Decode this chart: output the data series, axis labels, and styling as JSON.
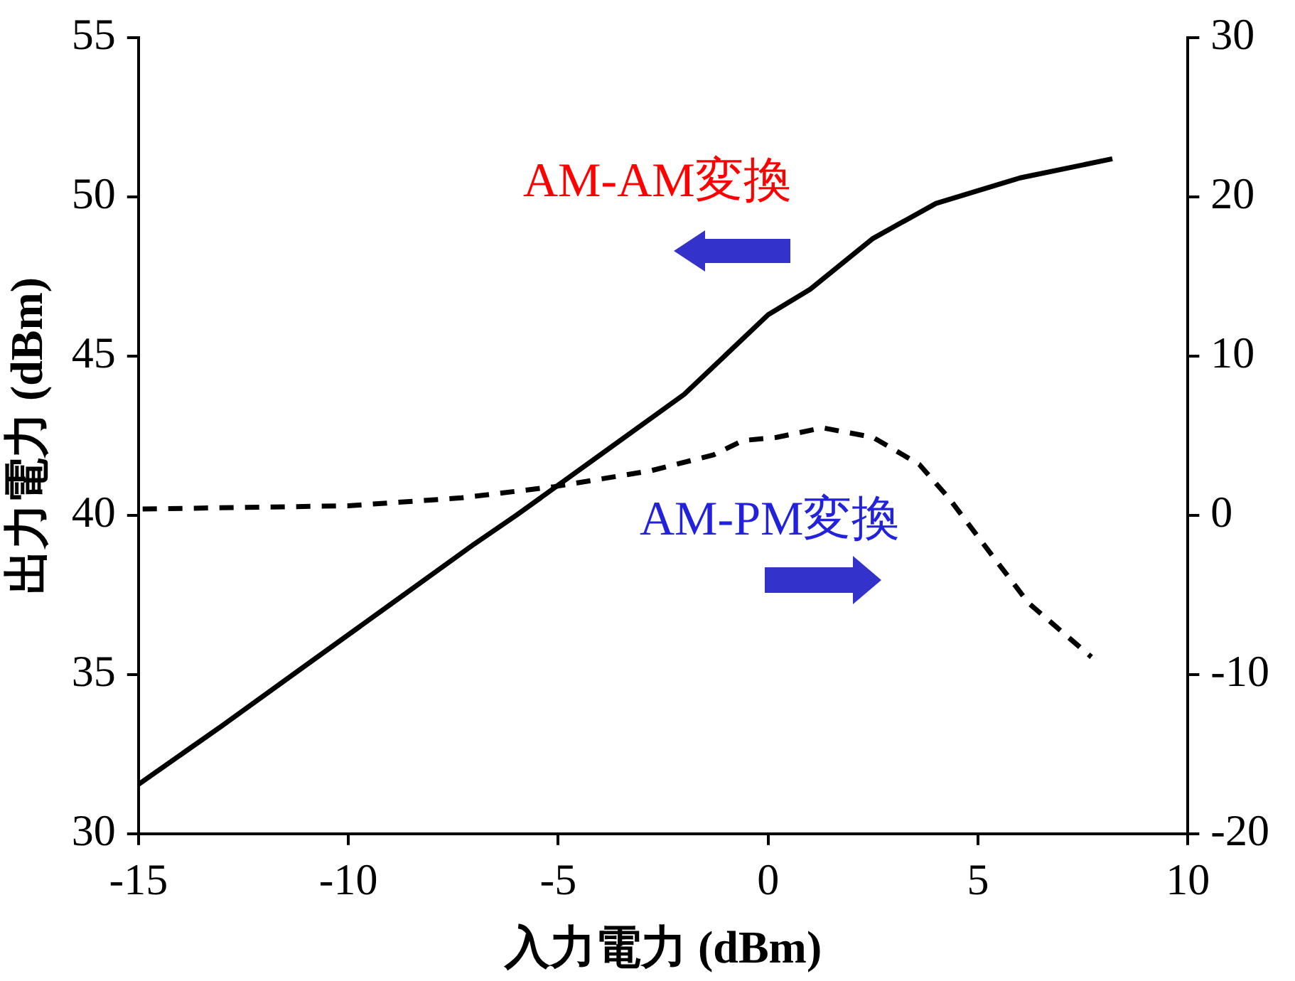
{
  "chart_data": {
    "type": "line",
    "xlabel": "入力電力 (dBm)",
    "ylabel": "出力電力 (dBm)",
    "xlim": [
      -15,
      10
    ],
    "xticks": [
      -15,
      -10,
      -5,
      0,
      5,
      10
    ],
    "ylim": [
      30,
      55
    ],
    "yticks": [
      30,
      35,
      40,
      45,
      50,
      55
    ],
    "y2lim": [
      -20,
      30
    ],
    "y2ticks": [
      -20,
      -10,
      0,
      10,
      20,
      30
    ],
    "grid": false,
    "legend": false,
    "marker": "none",
    "series": [
      {
        "color": "#000000",
        "line_style": "solid",
        "x": [
          -15,
          -13,
          -11,
          -9,
          -7,
          -6,
          -4,
          -2,
          0,
          1,
          2.5,
          4,
          6,
          8.2
        ],
        "values": [
          31.55,
          33.4,
          35.3,
          37.2,
          39.1,
          40,
          41.9,
          43.8,
          46.3,
          47.1,
          48.7,
          49.8,
          50.6,
          51.2
        ]
      },
      {
        "color": "#000000",
        "line_style": "dashed",
        "axis": "y2",
        "x": [
          -14.9,
          -10,
          -7.3,
          -5.1,
          -2.8,
          -1.3,
          -0.6,
          0.2,
          1.3,
          2.5,
          3.6,
          4.3,
          5.1,
          6.2,
          7.7
        ],
        "values": [
          0.4,
          0.6,
          1.1,
          1.8,
          2.8,
          3.8,
          4.7,
          4.9,
          5.5,
          4.9,
          3.2,
          1.1,
          -1.7,
          -5.5,
          -8.9
        ]
      }
    ],
    "annotations": [
      "AM-AM変換",
      "AM-PM変換"
    ]
  }
}
